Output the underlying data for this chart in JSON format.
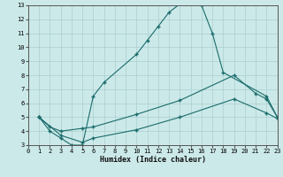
{
  "xlabel": "Humidex (Indice chaleur)",
  "bg_color": "#cce9e9",
  "line_color": "#1a6b6b",
  "grid_color": "#aacece",
  "xlim": [
    0,
    23
  ],
  "ylim": [
    3,
    13
  ],
  "xticks": [
    0,
    1,
    2,
    3,
    4,
    5,
    6,
    7,
    8,
    9,
    10,
    11,
    12,
    13,
    14,
    15,
    16,
    17,
    18,
    19,
    20,
    21,
    22,
    23
  ],
  "yticks": [
    3,
    4,
    5,
    6,
    7,
    8,
    9,
    10,
    11,
    12,
    13
  ],
  "curve1_x": [
    1,
    2,
    3,
    4,
    5,
    6,
    7,
    10,
    11,
    12,
    13,
    14,
    15,
    16,
    17,
    18,
    22,
    23
  ],
  "curve1_y": [
    5,
    4,
    3.5,
    3.0,
    3.0,
    6.5,
    7.5,
    9.5,
    10.5,
    11.5,
    12.5,
    13.1,
    13.2,
    13.0,
    11.0,
    8.2,
    6.5,
    5.0
  ],
  "curve2_x": [
    1,
    2,
    3,
    5,
    6,
    10,
    14,
    19,
    21,
    22,
    23
  ],
  "curve2_y": [
    5,
    4.3,
    4.0,
    4.2,
    4.3,
    5.2,
    6.2,
    8.0,
    6.7,
    6.3,
    5.0
  ],
  "curve3_x": [
    1,
    3,
    5,
    6,
    10,
    14,
    19,
    22,
    23
  ],
  "curve3_y": [
    5,
    3.7,
    3.2,
    3.5,
    4.1,
    5.0,
    6.3,
    5.3,
    4.9
  ]
}
